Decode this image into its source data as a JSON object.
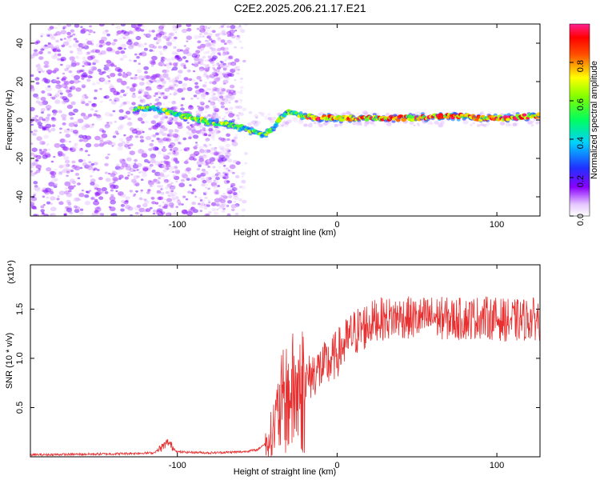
{
  "title": "C2E2.2025.206.21.17.E21",
  "chart_data": [
    {
      "type": "heatmap",
      "name": "spectrogram",
      "xlabel": "Height of straight line (km)",
      "ylabel": "Frequency (Hz)",
      "xlim": [
        -192,
        127
      ],
      "ylim": [
        -50,
        50
      ],
      "xticks": [
        -100,
        0,
        100
      ],
      "xtick_labels": [
        "-100",
        "0",
        "100"
      ],
      "yticks": [
        -40,
        -20,
        0,
        20,
        40
      ],
      "ytick_labels": [
        "-40",
        "-20",
        "0",
        "20",
        "40"
      ],
      "colorbar": {
        "label": "Normalized spectral amplitude",
        "range": [
          0,
          1
        ],
        "ticks": [
          0,
          0.2,
          0.4,
          0.6,
          0.8
        ],
        "tick_labels": [
          "0.0",
          "0.2",
          "0.4",
          "0.6",
          "0.8"
        ]
      },
      "ridge": {
        "x": [
          -125,
          -115,
          -105,
          -95,
          -85,
          -75,
          -65,
          -55,
          -47,
          -40,
          -35,
          -30,
          -25,
          -20,
          -10,
          0,
          10,
          20,
          30,
          40,
          50,
          60,
          70,
          80,
          90,
          100,
          110,
          120,
          127
        ],
        "y": [
          6,
          6,
          4,
          2,
          0,
          -2,
          -3,
          -5,
          -8,
          -5,
          2,
          4,
          3,
          2,
          1,
          1,
          1,
          1,
          1,
          1,
          1,
          2,
          2,
          2,
          1,
          1,
          1,
          2,
          2
        ]
      },
      "grid": false
    },
    {
      "type": "line",
      "name": "snr",
      "xlabel": "Height of straight line (km)",
      "ylabel": "SNR (10 * v/v)",
      "y_multiplier": "(x10⁴)",
      "xlim": [
        -192,
        127
      ],
      "ylim": [
        0,
        1.95
      ],
      "xticks": [
        -100,
        0,
        100
      ],
      "xtick_labels": [
        "-100",
        "0",
        "100"
      ],
      "yticks": [
        0.5,
        1.0,
        1.5
      ],
      "ytick_labels": [
        "0.5",
        "1.0",
        "1.5"
      ],
      "series_color": "#e83030",
      "envelope": {
        "x": [
          -192,
          -140,
          -115,
          -110,
          -106,
          -100,
          -80,
          -60,
          -50,
          -44,
          -40,
          -35,
          -30,
          -25,
          -20,
          -15,
          -10,
          -5,
          0,
          5,
          10,
          15,
          20,
          25,
          30,
          40,
          50,
          60,
          70,
          80,
          90,
          100,
          110,
          120,
          127
        ],
        "y": [
          0.02,
          0.03,
          0.04,
          0.09,
          0.15,
          0.05,
          0.04,
          0.05,
          0.07,
          0.15,
          0.3,
          0.55,
          0.65,
          0.7,
          0.75,
          0.85,
          0.9,
          0.95,
          1.05,
          1.15,
          1.25,
          1.3,
          1.35,
          1.4,
          1.4,
          1.42,
          1.4,
          1.42,
          1.4,
          1.4,
          1.42,
          1.4,
          1.38,
          1.4,
          1.4
        ]
      },
      "grid": false
    }
  ]
}
